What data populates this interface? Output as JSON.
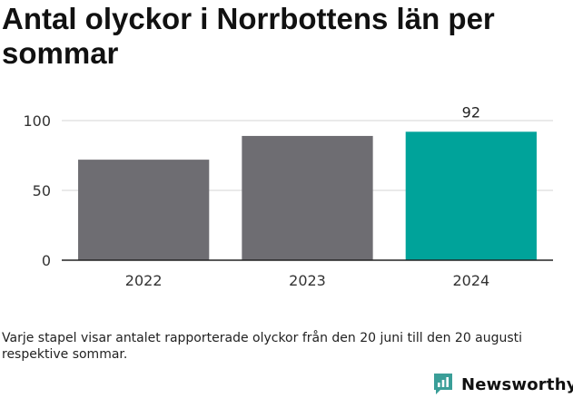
{
  "title": "Antal olyckor i Norrbottens län per sommar",
  "note": "Varje stapel visar antalet rapporterade olyckor från den 20 juni till den 20 augusti respektive sommar.",
  "brand": {
    "name": "Newsworthy",
    "icon": "newsworthy-logo-icon",
    "color": "#3a9e98"
  },
  "chart_data": {
    "type": "bar",
    "categories": [
      "2022",
      "2023",
      "2024"
    ],
    "values": [
      72,
      89,
      92
    ],
    "highlight_index": 2,
    "data_labels": [
      {
        "index": 2,
        "text": "92"
      }
    ],
    "yticks": [
      0,
      50,
      100
    ],
    "ylim": [
      0,
      100
    ],
    "grid": true,
    "colors": {
      "default": "#6e6d72",
      "highlight": "#00a39a",
      "grid": "#dddddd",
      "axis": "#222222"
    }
  }
}
